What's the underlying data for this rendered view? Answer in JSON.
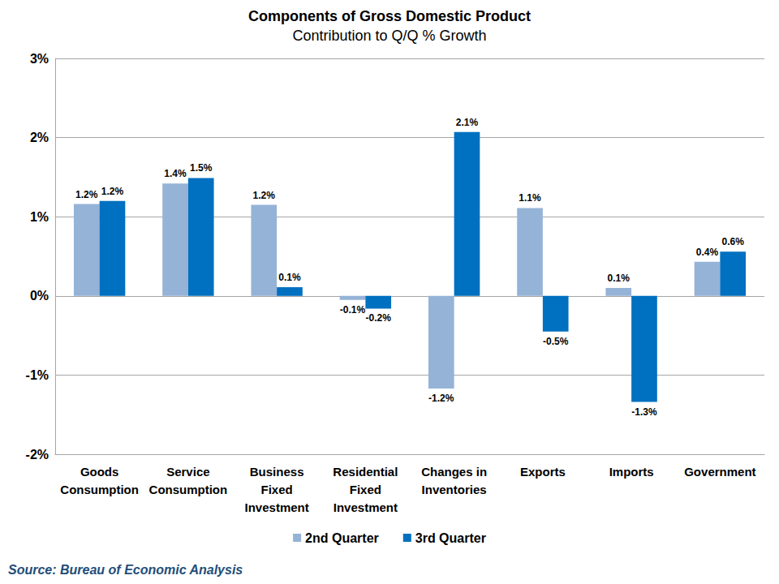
{
  "chart_data": {
    "type": "bar",
    "title": "Components of Gross Domestic Product",
    "subtitle": "Contribution to Q/Q % Growth",
    "source": "Source: Bureau of Economic Analysis",
    "categories": [
      "Goods\nConsumption",
      "Service\nConsumption",
      "Business\nFixed\nInvestment",
      "Residential\nFixed\nInvestment",
      "Changes in\nInventories",
      "Exports",
      "Imports",
      "Government"
    ],
    "series": [
      {
        "name": "2nd Quarter",
        "color": "#95b3d7",
        "values": [
          1.16,
          1.42,
          1.15,
          -0.05,
          -1.17,
          1.11,
          0.1,
          0.43
        ],
        "value_labels": [
          "1.2%",
          "1.4%",
          "1.2%",
          "-0.1%",
          "-1.2%",
          "1.1%",
          "0.1%",
          "0.4%"
        ]
      },
      {
        "name": "3rd Quarter",
        "color": "#0070c0",
        "values": [
          1.2,
          1.49,
          0.11,
          -0.16,
          2.07,
          -0.45,
          -1.34,
          0.56
        ],
        "value_labels": [
          "1.2%",
          "1.5%",
          "0.1%",
          "-0.2%",
          "2.1%",
          "-0.5%",
          "-1.3%",
          "0.6%"
        ]
      }
    ],
    "ylim": [
      -2,
      3
    ],
    "yticks": [
      {
        "value": -2,
        "label": "-2%"
      },
      {
        "value": -1,
        "label": "-1%"
      },
      {
        "value": 0,
        "label": "0%"
      },
      {
        "value": 1,
        "label": "1%"
      },
      {
        "value": 2,
        "label": "2%"
      },
      {
        "value": 3,
        "label": "3%"
      }
    ],
    "grid": true,
    "legend": "bottom",
    "data_labels": true
  }
}
